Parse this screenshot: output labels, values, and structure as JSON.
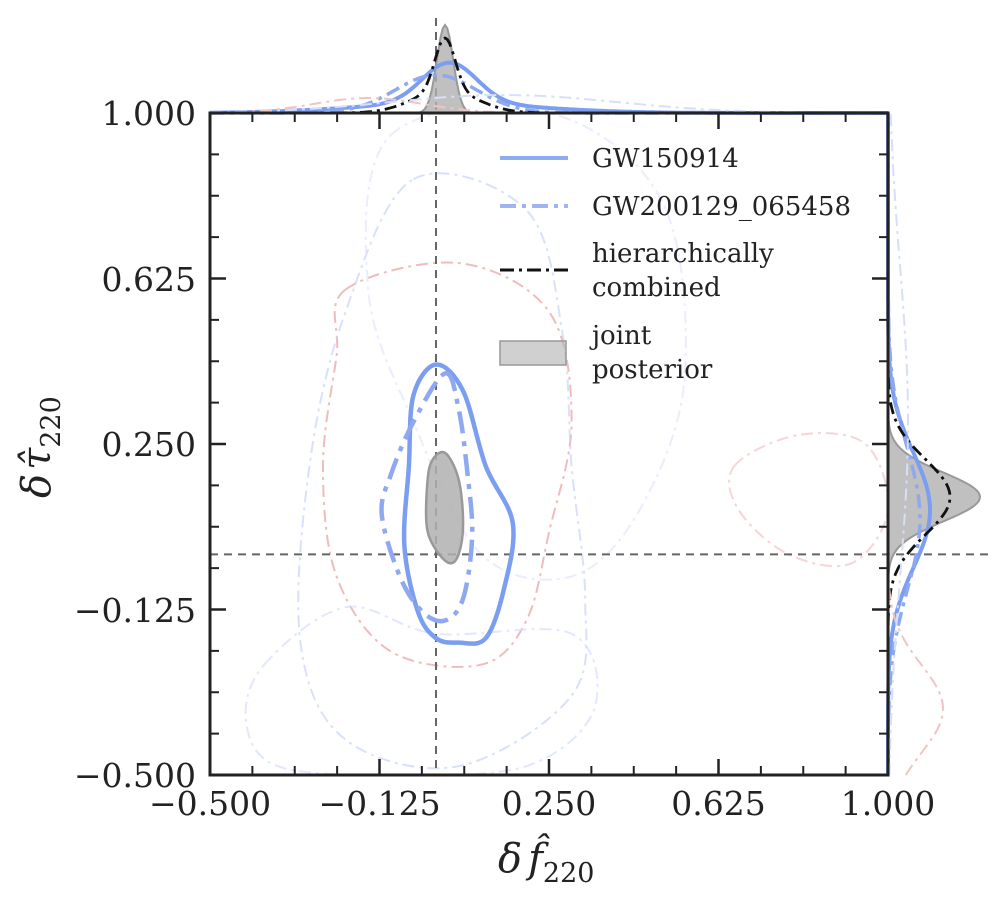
{
  "chart_data": {
    "type": "contour",
    "xlabel": {
      "main": "δ",
      "symbol": "f̂",
      "sub": "220"
    },
    "ylabel": {
      "main": "δ",
      "symbol": "τ̂",
      "sub": "220"
    },
    "xlim": [
      -0.5,
      1.0
    ],
    "ylim": [
      -0.5,
      1.0
    ],
    "xticks": [
      "−0.500",
      "−0.125",
      "0.250",
      "0.625",
      "1.000"
    ],
    "yticks": [
      "−0.500",
      "−0.125",
      "0.250",
      "0.625",
      "1.000"
    ],
    "tick_values": [
      -0.5,
      -0.125,
      0.25,
      0.625,
      1.0
    ],
    "gr_reference": {
      "x": 0.0,
      "y": 0.0
    },
    "legend": [
      {
        "label": "GW150914",
        "style": "solid",
        "color": "#7b9ef0"
      },
      {
        "label": "GW200129_065458",
        "style": "dashdot",
        "color": "#8fa9f0"
      },
      {
        "label": "hierarchically combined",
        "lines": [
          "hierarchically",
          "combined"
        ],
        "style": "dashdot",
        "color": "#111111"
      },
      {
        "label": "joint posterior",
        "lines": [
          "joint",
          "posterior"
        ],
        "style": "fill",
        "color": "#b0b0b0"
      }
    ],
    "series": [
      {
        "name": "GW150914",
        "style": "solid",
        "color": "#7b9ef0",
        "contour": [
          [
            0.0,
            0.43
          ],
          [
            0.06,
            0.37
          ],
          [
            0.11,
            0.2
          ],
          [
            0.17,
            0.07
          ],
          [
            0.15,
            -0.08
          ],
          [
            0.11,
            -0.19
          ],
          [
            0.05,
            -0.2
          ],
          [
            0.0,
            -0.19
          ],
          [
            -0.04,
            -0.13
          ],
          [
            -0.07,
            0.02
          ],
          [
            -0.06,
            0.2
          ],
          [
            -0.05,
            0.36
          ]
        ]
      },
      {
        "name": "GW200129_065458",
        "style": "dashdot",
        "color": "#8fa9f0",
        "contour": [
          [
            0.02,
            0.41
          ],
          [
            0.05,
            0.33
          ],
          [
            0.07,
            0.18
          ],
          [
            0.08,
            0.04
          ],
          [
            0.06,
            -0.1
          ],
          [
            0.02,
            -0.15
          ],
          [
            -0.03,
            -0.13
          ],
          [
            -0.08,
            -0.05
          ],
          [
            -0.12,
            0.09
          ],
          [
            -0.1,
            0.18
          ],
          [
            -0.05,
            0.3
          ]
        ]
      },
      {
        "name": "joint posterior",
        "style": "fill",
        "color": "#b0b0b0",
        "contour": [
          [
            0.02,
            0.23
          ],
          [
            0.05,
            0.17
          ],
          [
            0.06,
            0.07
          ],
          [
            0.05,
            0.0
          ],
          [
            0.03,
            -0.02
          ],
          [
            0.0,
            0.01
          ],
          [
            -0.02,
            0.06
          ],
          [
            -0.02,
            0.15
          ],
          [
            -0.01,
            0.21
          ]
        ]
      }
    ],
    "faint_events": [
      {
        "color": "#e8a0a0",
        "contour": [
          [
            -0.2,
            0.6
          ],
          [
            0.05,
            0.66
          ],
          [
            0.25,
            0.55
          ],
          [
            0.3,
            0.3
          ],
          [
            0.25,
            0.05
          ],
          [
            0.2,
            -0.15
          ],
          [
            0.1,
            -0.25
          ],
          [
            -0.1,
            -0.22
          ],
          [
            -0.22,
            -0.05
          ],
          [
            -0.25,
            0.2
          ],
          [
            -0.22,
            0.45
          ]
        ]
      },
      {
        "color": "#c8d4f5",
        "contour": [
          [
            -0.05,
            0.85
          ],
          [
            0.2,
            0.78
          ],
          [
            0.28,
            0.5
          ],
          [
            0.3,
            0.2
          ],
          [
            0.33,
            -0.1
          ],
          [
            0.3,
            -0.32
          ],
          [
            0.05,
            -0.48
          ],
          [
            -0.2,
            -0.42
          ],
          [
            -0.3,
            -0.2
          ],
          [
            -0.28,
            0.2
          ],
          [
            -0.2,
            0.55
          ]
        ]
      },
      {
        "color": "#d6defa",
        "contour": [
          [
            -0.38,
            -0.25
          ],
          [
            -0.2,
            -0.12
          ],
          [
            0.0,
            -0.18
          ],
          [
            0.3,
            -0.18
          ],
          [
            0.35,
            -0.35
          ],
          [
            0.2,
            -0.48
          ],
          [
            -0.1,
            -0.5
          ],
          [
            -0.35,
            -0.48
          ],
          [
            -0.42,
            -0.38
          ]
        ]
      },
      {
        "color": "#f0c4c4",
        "contour": [
          [
            0.66,
            0.2
          ],
          [
            0.8,
            0.27
          ],
          [
            0.95,
            0.25
          ],
          [
            1.0,
            0.1
          ],
          [
            0.92,
            -0.02
          ],
          [
            0.78,
            0.0
          ],
          [
            0.67,
            0.1
          ]
        ]
      },
      {
        "color": "#dfe6fb",
        "contour": [
          [
            -0.1,
            0.95
          ],
          [
            0.25,
            1.0
          ],
          [
            0.5,
            0.8
          ],
          [
            0.55,
            0.4
          ],
          [
            0.45,
            0.1
          ],
          [
            0.3,
            -0.05
          ],
          [
            0.1,
            0.0
          ],
          [
            -0.05,
            0.3
          ],
          [
            -0.15,
            0.6
          ]
        ]
      }
    ],
    "marginal_x": {
      "joint_peak": 0.02,
      "combined_peak": 0.02
    },
    "marginal_y": {
      "joint_peak": 0.13,
      "combined_peak": 0.13
    }
  }
}
